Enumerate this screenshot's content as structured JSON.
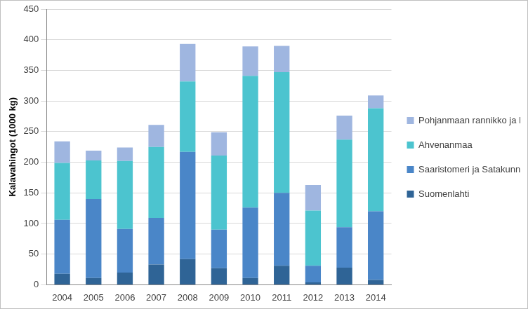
{
  "chart_data": {
    "type": "bar",
    "stacked": true,
    "y_label": "Kalavahingot (1000 kg)",
    "categories": [
      "2004",
      "2005",
      "2006",
      "2007",
      "2008",
      "2009",
      "2010",
      "2011",
      "2012",
      "2013",
      "2014"
    ],
    "series": [
      {
        "name": "Suomenlahti",
        "color": "#2f6496",
        "values": [
          18,
          11,
          20,
          33,
          42,
          27,
          11,
          31,
          4,
          28,
          8
        ]
      },
      {
        "name": "Saaristomeri ja Satakunnan rannikko",
        "color": "#4a86c8",
        "values": [
          88,
          129,
          71,
          76,
          175,
          63,
          115,
          119,
          27,
          66,
          112
        ]
      },
      {
        "name": "Ahvenanmaa",
        "color": "#4cc4cf",
        "values": [
          93,
          63,
          111,
          116,
          115,
          121,
          215,
          197,
          90,
          143,
          168
        ]
      },
      {
        "name": "Pohjanmaan rannikko ja Perämeri",
        "color": "#9fb6e0",
        "values": [
          35,
          16,
          22,
          36,
          61,
          38,
          48,
          43,
          42,
          39,
          21
        ]
      }
    ],
    "ylim": [
      0,
      450
    ],
    "yticks": [
      0,
      50,
      100,
      150,
      200,
      250,
      300,
      350,
      400,
      450
    ],
    "grid": true,
    "legend": "right"
  }
}
